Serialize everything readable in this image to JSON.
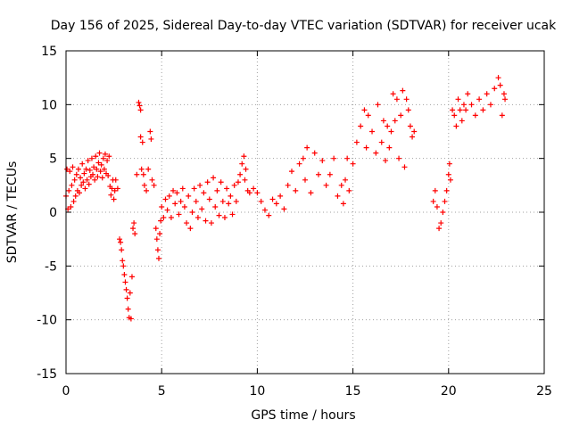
{
  "chart_data": {
    "type": "scatter",
    "title": "Day 156 of 2025, Sidereal Day-to-day VTEC variation (SDTVAR) for receiver ucak",
    "xlabel": "GPS time / hours",
    "ylabel": "SDTVAR / TECUs",
    "xlim": [
      0,
      25
    ],
    "ylim": [
      -15,
      15
    ],
    "xticks": [
      0,
      5,
      10,
      15,
      20,
      25
    ],
    "yticks": [
      -15,
      -10,
      -5,
      0,
      5,
      10,
      15
    ],
    "xtick_labels": [
      "0",
      "5",
      "10",
      "15",
      "20",
      "25"
    ],
    "ytick_labels": [
      "-15",
      "-10",
      "-5",
      "0",
      "5",
      "10",
      "15"
    ],
    "grid": true,
    "marker": "+",
    "color": "#ff0000",
    "series": [
      {
        "name": "SDTVAR",
        "points": [
          [
            0.0,
            1.5
          ],
          [
            0.05,
            4.0
          ],
          [
            0.1,
            0.3
          ],
          [
            0.15,
            2.0
          ],
          [
            0.2,
            3.8
          ],
          [
            0.25,
            0.5
          ],
          [
            0.3,
            2.5
          ],
          [
            0.35,
            4.2
          ],
          [
            0.4,
            1.0
          ],
          [
            0.45,
            3.0
          ],
          [
            0.5,
            1.5
          ],
          [
            0.55,
            3.5
          ],
          [
            0.6,
            2.0
          ],
          [
            0.65,
            4.0
          ],
          [
            0.7,
            1.8
          ],
          [
            0.75,
            3.2
          ],
          [
            0.8,
            2.5
          ],
          [
            0.85,
            4.5
          ],
          [
            0.9,
            2.8
          ],
          [
            0.95,
            3.6
          ],
          [
            1.0,
            2.2
          ],
          [
            1.05,
            4.0
          ],
          [
            1.1,
            3.0
          ],
          [
            1.15,
            4.8
          ],
          [
            1.2,
            2.6
          ],
          [
            1.25,
            3.9
          ],
          [
            1.3,
            3.3
          ],
          [
            1.35,
            5.0
          ],
          [
            1.4,
            3.5
          ],
          [
            1.45,
            4.2
          ],
          [
            1.5,
            3.0
          ],
          [
            1.55,
            5.2
          ],
          [
            1.6,
            4.0
          ],
          [
            1.65,
            3.3
          ],
          [
            1.7,
            4.6
          ],
          [
            1.75,
            5.5
          ],
          [
            1.8,
            3.8
          ],
          [
            1.85,
            4.4
          ],
          [
            1.9,
            3.2
          ],
          [
            1.95,
            5.0
          ],
          [
            2.0,
            4.0
          ],
          [
            2.05,
            5.4
          ],
          [
            2.1,
            3.6
          ],
          [
            2.15,
            4.8
          ],
          [
            2.2,
            3.4
          ],
          [
            2.25,
            5.2
          ],
          [
            2.3,
            2.4
          ],
          [
            2.35,
            1.6
          ],
          [
            2.4,
            2.2
          ],
          [
            2.45,
            3.0
          ],
          [
            2.5,
            1.2
          ],
          [
            2.55,
            2.0
          ],
          [
            2.6,
            3.0
          ],
          [
            2.7,
            2.2
          ],
          [
            2.8,
            -2.5
          ],
          [
            2.85,
            -2.8
          ],
          [
            2.9,
            -3.5
          ],
          [
            2.95,
            -4.5
          ],
          [
            3.0,
            -5.0
          ],
          [
            3.05,
            -5.8
          ],
          [
            3.1,
            -6.5
          ],
          [
            3.15,
            -7.2
          ],
          [
            3.2,
            -8.0
          ],
          [
            3.25,
            -9.0
          ],
          [
            3.3,
            -9.8
          ],
          [
            3.35,
            -7.5
          ],
          [
            3.4,
            -9.9
          ],
          [
            3.45,
            -6.0
          ],
          [
            3.5,
            -1.5
          ],
          [
            3.55,
            -1.0
          ],
          [
            3.6,
            -2.0
          ],
          [
            3.7,
            3.5
          ],
          [
            3.8,
            10.2
          ],
          [
            3.85,
            9.9
          ],
          [
            3.9,
            9.5
          ],
          [
            3.95,
            4.0
          ],
          [
            3.9,
            7.0
          ],
          [
            4.0,
            6.5
          ],
          [
            4.05,
            3.5
          ],
          [
            4.1,
            2.5
          ],
          [
            4.2,
            2.0
          ],
          [
            4.3,
            4.0
          ],
          [
            4.4,
            7.5
          ],
          [
            4.45,
            6.8
          ],
          [
            4.5,
            3.0
          ],
          [
            4.6,
            2.5
          ],
          [
            4.7,
            -1.5
          ],
          [
            4.75,
            -2.5
          ],
          [
            4.8,
            -3.5
          ],
          [
            4.85,
            -4.3
          ],
          [
            4.9,
            -2.0
          ],
          [
            4.95,
            -0.8
          ],
          [
            5.0,
            0.5
          ],
          [
            5.1,
            -0.5
          ],
          [
            5.2,
            1.2
          ],
          [
            5.3,
            0.2
          ],
          [
            5.4,
            1.5
          ],
          [
            5.5,
            -0.5
          ],
          [
            5.6,
            2.0
          ],
          [
            5.7,
            0.8
          ],
          [
            5.8,
            1.8
          ],
          [
            5.9,
            -0.2
          ],
          [
            6.0,
            1.0
          ],
          [
            6.1,
            2.2
          ],
          [
            6.2,
            0.5
          ],
          [
            6.3,
            -1.0
          ],
          [
            6.4,
            1.5
          ],
          [
            6.5,
            -1.5
          ],
          [
            6.6,
            0.0
          ],
          [
            6.7,
            2.2
          ],
          [
            6.8,
            1.0
          ],
          [
            6.9,
            -0.5
          ],
          [
            7.0,
            2.5
          ],
          [
            7.1,
            0.3
          ],
          [
            7.2,
            1.8
          ],
          [
            7.3,
            -0.8
          ],
          [
            7.4,
            2.8
          ],
          [
            7.5,
            1.2
          ],
          [
            7.6,
            -1.0
          ],
          [
            7.7,
            3.2
          ],
          [
            7.8,
            0.5
          ],
          [
            7.9,
            2.0
          ],
          [
            8.0,
            -0.3
          ],
          [
            8.1,
            2.8
          ],
          [
            8.2,
            1.0
          ],
          [
            8.3,
            -0.5
          ],
          [
            8.4,
            2.2
          ],
          [
            8.5,
            0.8
          ],
          [
            8.6,
            1.5
          ],
          [
            8.7,
            -0.2
          ],
          [
            8.8,
            2.5
          ],
          [
            8.9,
            1.0
          ],
          [
            9.0,
            2.8
          ],
          [
            9.1,
            3.5
          ],
          [
            9.2,
            4.5
          ],
          [
            9.3,
            5.2
          ],
          [
            9.35,
            3.0
          ],
          [
            9.4,
            4.0
          ],
          [
            9.5,
            2.0
          ],
          [
            9.6,
            1.8
          ],
          [
            9.8,
            2.2
          ],
          [
            10.0,
            1.8
          ],
          [
            10.2,
            1.0
          ],
          [
            10.4,
            0.2
          ],
          [
            10.6,
            -0.3
          ],
          [
            10.8,
            1.2
          ],
          [
            11.0,
            0.8
          ],
          [
            11.2,
            1.5
          ],
          [
            11.4,
            0.3
          ],
          [
            11.6,
            2.5
          ],
          [
            11.8,
            3.8
          ],
          [
            12.0,
            2.0
          ],
          [
            12.2,
            4.5
          ],
          [
            12.4,
            5.0
          ],
          [
            12.5,
            3.0
          ],
          [
            12.6,
            6.0
          ],
          [
            12.8,
            1.8
          ],
          [
            13.0,
            5.5
          ],
          [
            13.2,
            3.5
          ],
          [
            13.4,
            4.8
          ],
          [
            13.6,
            2.5
          ],
          [
            13.8,
            3.5
          ],
          [
            14.0,
            5.0
          ],
          [
            14.2,
            1.5
          ],
          [
            14.4,
            2.5
          ],
          [
            14.5,
            0.8
          ],
          [
            14.6,
            3.0
          ],
          [
            14.7,
            5.0
          ],
          [
            14.8,
            2.0
          ],
          [
            15.0,
            4.5
          ],
          [
            15.2,
            6.5
          ],
          [
            15.4,
            8.0
          ],
          [
            15.6,
            9.5
          ],
          [
            15.7,
            6.0
          ],
          [
            15.8,
            9.0
          ],
          [
            16.0,
            7.5
          ],
          [
            16.2,
            5.5
          ],
          [
            16.3,
            10.0
          ],
          [
            16.5,
            6.5
          ],
          [
            16.6,
            8.5
          ],
          [
            16.7,
            4.8
          ],
          [
            16.8,
            8.0
          ],
          [
            16.9,
            6.0
          ],
          [
            17.0,
            7.5
          ],
          [
            17.1,
            11.0
          ],
          [
            17.2,
            8.5
          ],
          [
            17.3,
            10.5
          ],
          [
            17.4,
            5.0
          ],
          [
            17.5,
            9.0
          ],
          [
            17.6,
            11.3
          ],
          [
            17.7,
            4.2
          ],
          [
            17.8,
            10.5
          ],
          [
            17.9,
            9.5
          ],
          [
            18.0,
            8.0
          ],
          [
            18.1,
            7.0
          ],
          [
            18.2,
            7.5
          ],
          [
            19.2,
            1.0
          ],
          [
            19.3,
            2.0
          ],
          [
            19.4,
            0.5
          ],
          [
            19.5,
            -1.5
          ],
          [
            19.6,
            -1.0
          ],
          [
            19.7,
            0.0
          ],
          [
            19.8,
            1.0
          ],
          [
            19.9,
            2.0
          ],
          [
            20.0,
            3.5
          ],
          [
            20.05,
            4.5
          ],
          [
            20.1,
            3.0
          ],
          [
            20.2,
            9.5
          ],
          [
            20.3,
            9.0
          ],
          [
            20.4,
            8.0
          ],
          [
            20.5,
            10.5
          ],
          [
            20.6,
            9.5
          ],
          [
            20.7,
            8.5
          ],
          [
            20.8,
            10.0
          ],
          [
            20.9,
            9.5
          ],
          [
            21.0,
            11.0
          ],
          [
            21.2,
            10.0
          ],
          [
            21.4,
            9.0
          ],
          [
            21.6,
            10.5
          ],
          [
            21.8,
            9.5
          ],
          [
            22.0,
            11.0
          ],
          [
            22.2,
            10.0
          ],
          [
            22.4,
            11.5
          ],
          [
            22.6,
            12.5
          ],
          [
            22.7,
            11.8
          ],
          [
            22.8,
            9.0
          ],
          [
            22.9,
            11.0
          ],
          [
            22.95,
            10.5
          ]
        ]
      }
    ]
  },
  "colors": {
    "marker": "#ff0000",
    "grid": "#a0a0a0",
    "axis": "#000000",
    "background": "#ffffff"
  }
}
